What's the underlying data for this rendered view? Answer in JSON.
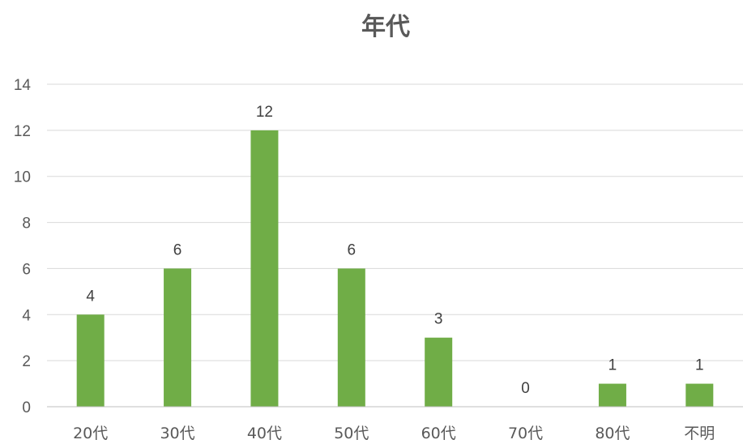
{
  "chart_data": {
    "type": "bar",
    "title": "年代",
    "categories": [
      "20代",
      "30代",
      "40代",
      "50代",
      "60代",
      "70代",
      "80代",
      "不明"
    ],
    "values": [
      4,
      6,
      12,
      6,
      3,
      0,
      1,
      1
    ],
    "ylim": [
      0,
      14
    ],
    "yticks": [
      0,
      2,
      4,
      6,
      8,
      10,
      12,
      14
    ],
    "grid": true,
    "data_labels": true,
    "bar_color": "#70ad47"
  }
}
